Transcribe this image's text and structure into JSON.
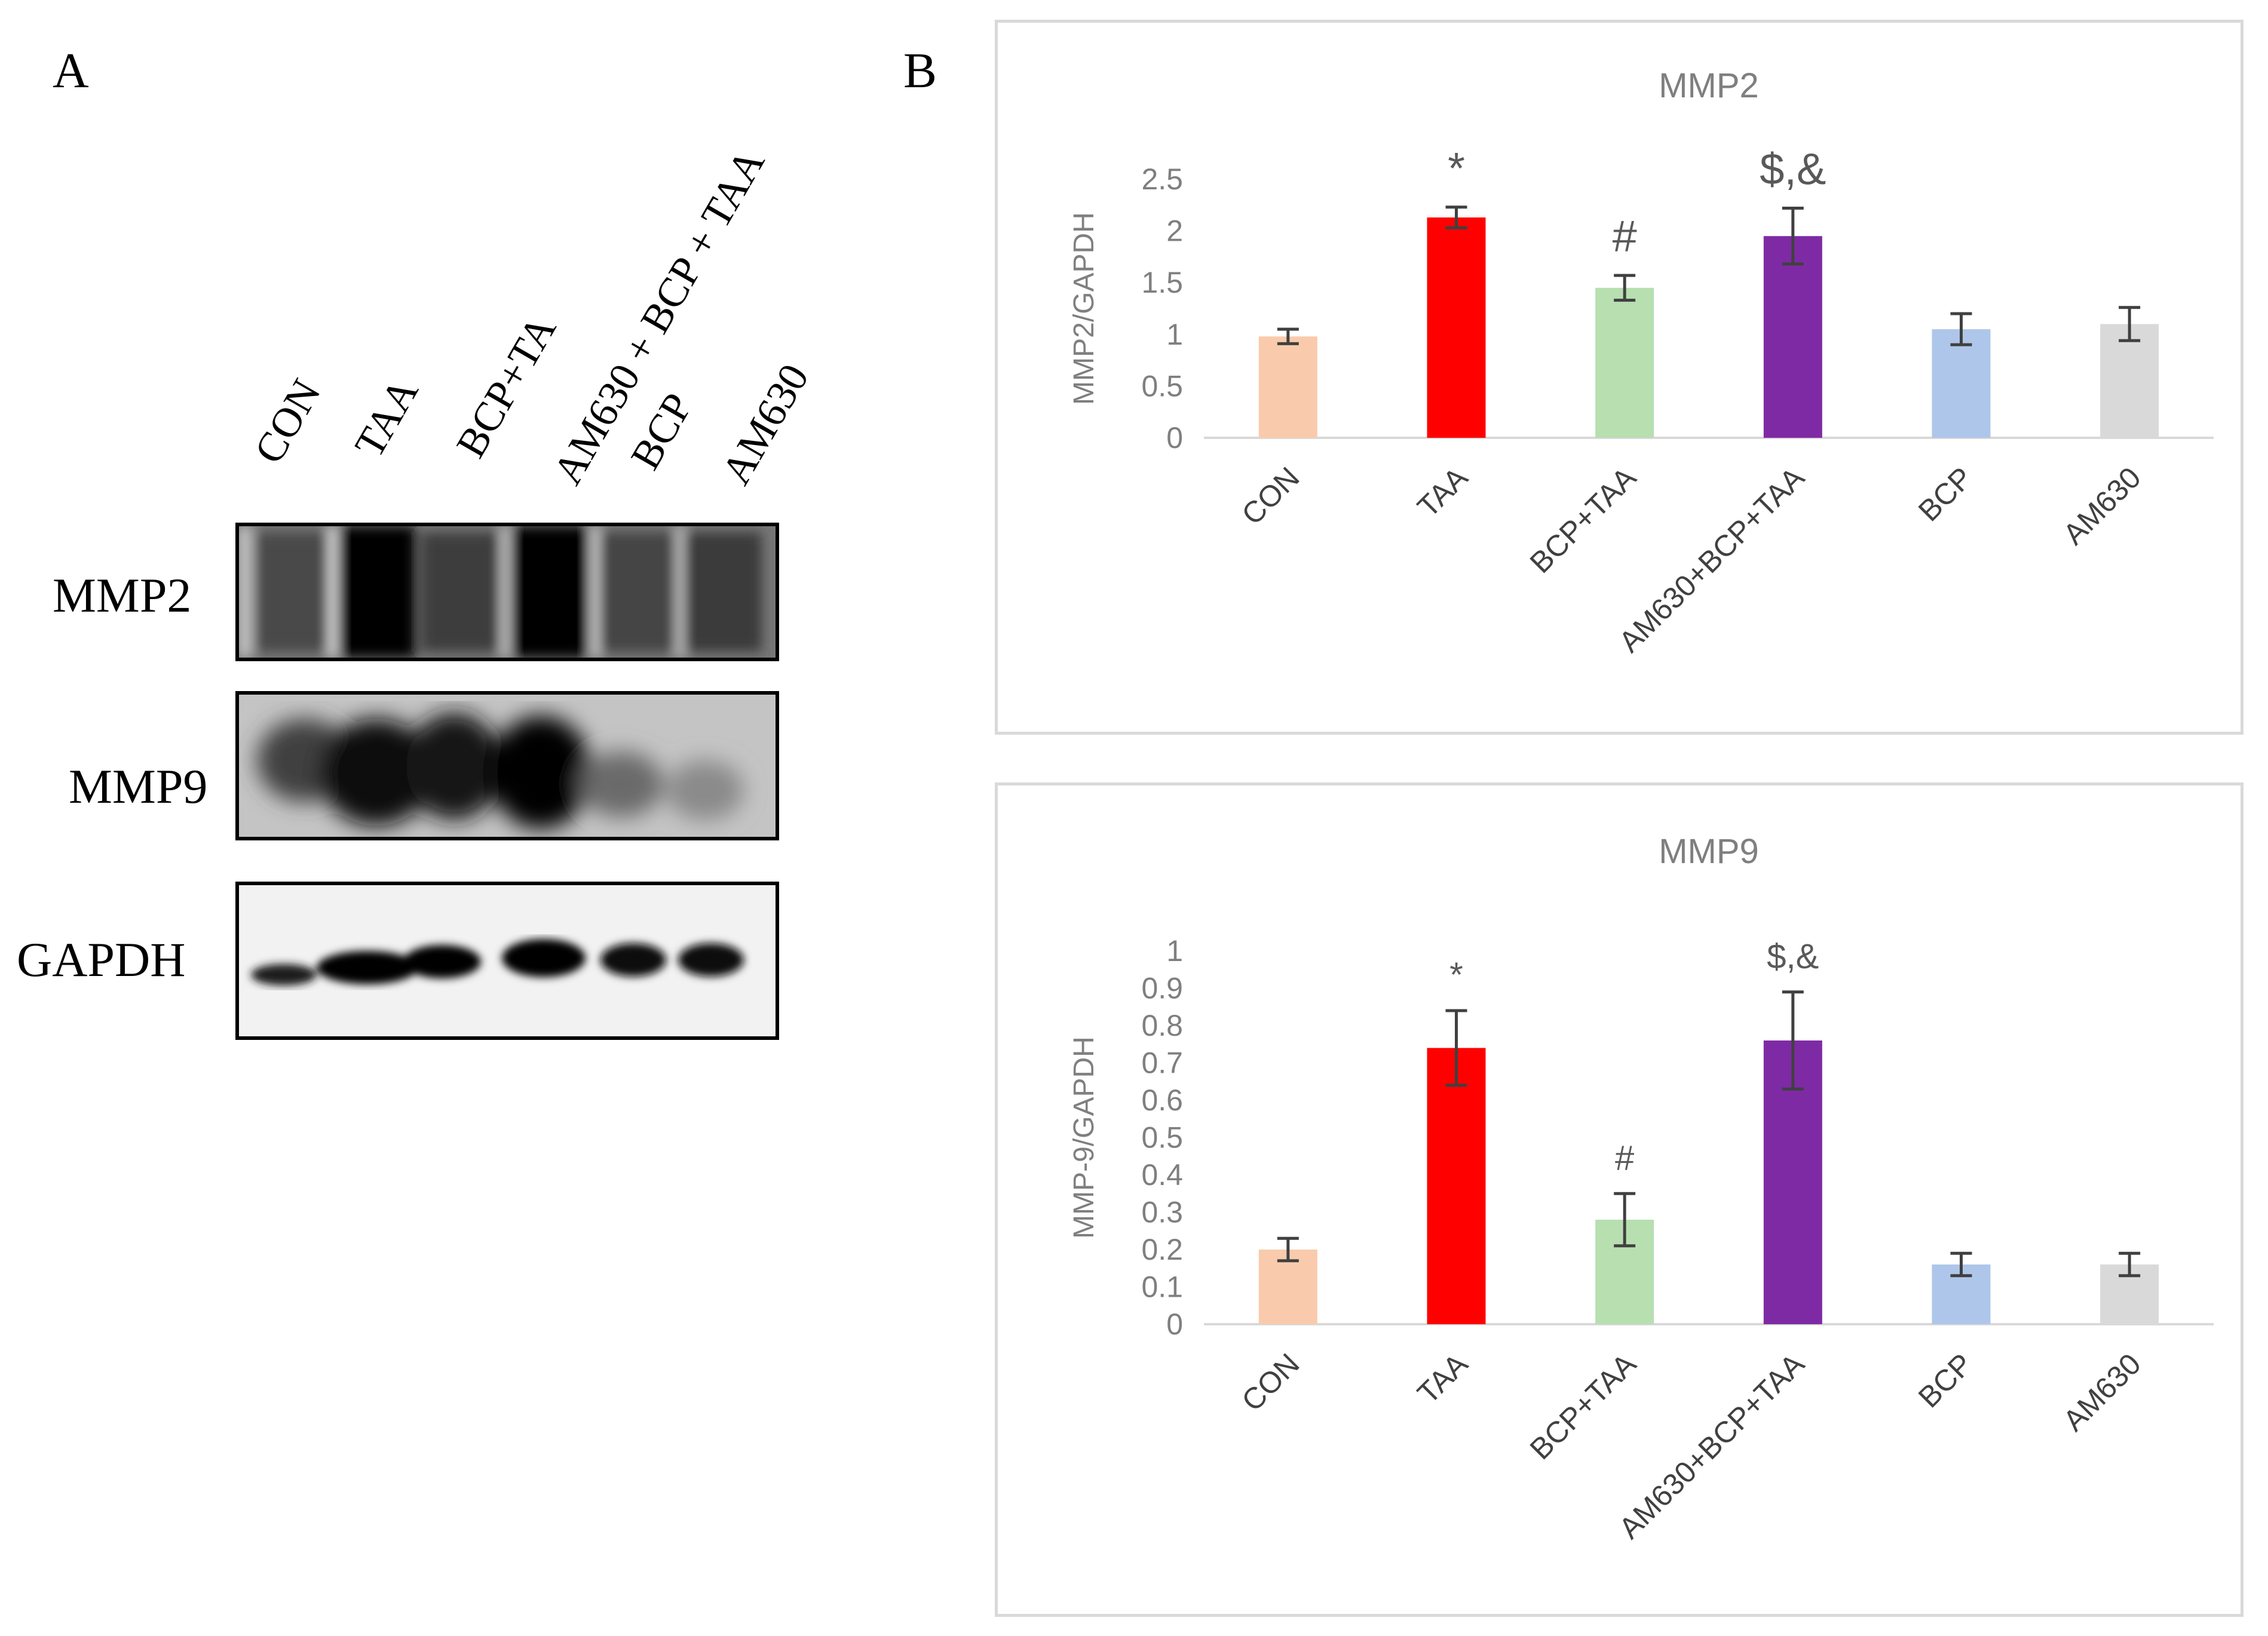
{
  "panel_a": {
    "letter": "A",
    "lane_labels": [
      "CON",
      "TAA",
      "BCP+TA",
      "AM630 + BCP + TAA",
      "BCP",
      "AM630"
    ],
    "rows": [
      {
        "label": "MMP2"
      },
      {
        "label": "MMP9"
      },
      {
        "label": "GAPDH"
      }
    ]
  },
  "panel_b": {
    "letter": "B"
  },
  "colors": {
    "CON": "#f9cbac",
    "TAA": "#ff0000",
    "BCP+TAA": "#b7dfb0",
    "AM630+BCP+TAA": "#7f2aa5",
    "BCP": "#aec6e9",
    "AM630": "#d9d9d9",
    "axis_text": "#7f7f7f",
    "error_bar": "#404040"
  },
  "chart_data": [
    {
      "type": "bar",
      "title": "MMP2",
      "ylabel": "MMP2/GAPDH",
      "xlabel": "",
      "categories": [
        "CON",
        "TAA",
        "BCP+TAA",
        "AM630+BCP+TAA",
        "BCP",
        "AM630"
      ],
      "values": [
        0.98,
        2.13,
        1.45,
        1.95,
        1.05,
        1.1
      ],
      "error": [
        0.07,
        0.1,
        0.12,
        0.27,
        0.15,
        0.16
      ],
      "annotations": [
        "",
        "*",
        "#",
        "$,&",
        "",
        ""
      ],
      "ylim": [
        0,
        2.5
      ],
      "yticks": [
        "0",
        "0.5",
        "1",
        "1.5",
        "2",
        "2.5"
      ],
      "grid": false
    },
    {
      "type": "bar",
      "title": "MMP9",
      "ylabel": "MMP-9/GAPDH",
      "xlabel": "",
      "categories": [
        "CON",
        "TAA",
        "BCP+TAA",
        "AM630+BCP+TAA",
        "BCP",
        "AM630"
      ],
      "values": [
        0.2,
        0.74,
        0.28,
        0.76,
        0.16,
        0.16
      ],
      "error": [
        0.03,
        0.1,
        0.07,
        0.13,
        0.03,
        0.03
      ],
      "annotations": [
        "",
        "*",
        "#",
        "$,&",
        "",
        ""
      ],
      "ylim": [
        0,
        1
      ],
      "yticks": [
        "0",
        "0.1",
        "0.2",
        "0.3",
        "0.4",
        "0.5",
        "0.6",
        "0.7",
        "0.8",
        "0.9",
        "1"
      ],
      "grid": false
    }
  ]
}
